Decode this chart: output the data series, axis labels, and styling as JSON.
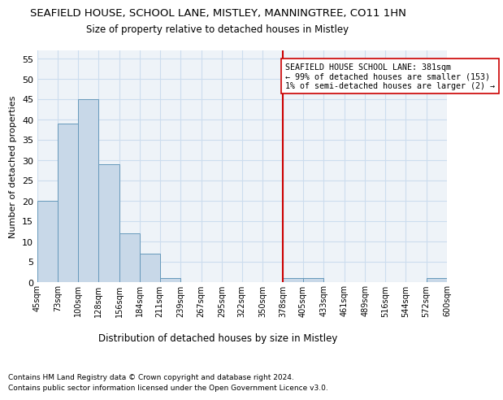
{
  "title_line1": "SEAFIELD HOUSE, SCHOOL LANE, MISTLEY, MANNINGTREE, CO11 1HN",
  "title_line2": "Size of property relative to detached houses in Mistley",
  "xlabel": "Distribution of detached houses by size in Mistley",
  "ylabel": "Number of detached properties",
  "footer_line1": "Contains HM Land Registry data © Crown copyright and database right 2024.",
  "footer_line2": "Contains public sector information licensed under the Open Government Licence v3.0.",
  "bin_edges": [
    45,
    73,
    100,
    128,
    156,
    184,
    211,
    239,
    267,
    295,
    322,
    350,
    378,
    405,
    433,
    461,
    489,
    516,
    544,
    572,
    600
  ],
  "bar_heights": [
    20,
    39,
    45,
    29,
    12,
    7,
    1,
    0,
    0,
    0,
    0,
    0,
    1,
    1,
    0,
    0,
    0,
    0,
    0,
    1
  ],
  "bar_facecolor": "#c8d8e8",
  "bar_edgecolor": "#6699bb",
  "property_line_x": 378,
  "property_line_color": "#cc0000",
  "annotation_text": "SEAFIELD HOUSE SCHOOL LANE: 381sqm\n← 99% of detached houses are smaller (153)\n1% of semi-detached houses are larger (2) →",
  "annotation_box_edgecolor": "#cc0000",
  "annotation_box_facecolor": "#ffffff",
  "ylim": [
    0,
    57
  ],
  "yticks": [
    0,
    5,
    10,
    15,
    20,
    25,
    30,
    35,
    40,
    45,
    50,
    55
  ],
  "grid_color": "#ccddee",
  "background_color": "#eef3f8"
}
